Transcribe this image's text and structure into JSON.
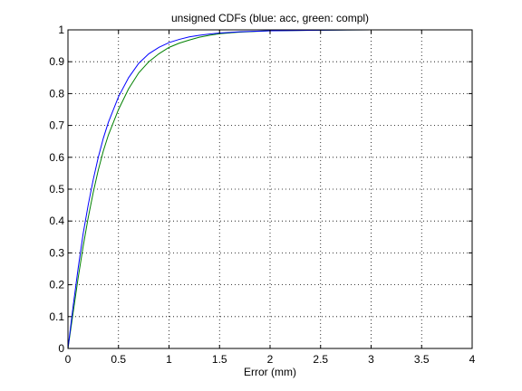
{
  "chart_data": {
    "type": "line",
    "title": "unsigned CDFs (blue: acc, green: compl)",
    "xlabel": "Error (mm)",
    "ylabel": "",
    "xlim": [
      0,
      4
    ],
    "ylim": [
      0,
      1
    ],
    "xticks": [
      0,
      0.5,
      1,
      1.5,
      2,
      2.5,
      3,
      3.5,
      4
    ],
    "xtick_labels": [
      "0",
      "0.5",
      "1",
      "1.5",
      "2",
      "2.5",
      "3",
      "3.5",
      "4"
    ],
    "yticks": [
      0,
      0.1,
      0.2,
      0.3,
      0.4,
      0.5,
      0.6,
      0.7,
      0.8,
      0.9,
      1
    ],
    "ytick_labels": [
      "0",
      "0.1",
      "0.2",
      "0.3",
      "0.4",
      "0.5",
      "0.6",
      "0.7",
      "0.8",
      "0.9",
      "1"
    ],
    "grid": true,
    "series": [
      {
        "color": "#0000ff",
        "x": [
          0,
          0.05,
          0.1,
          0.15,
          0.2,
          0.25,
          0.3,
          0.35,
          0.4,
          0.45,
          0.5,
          0.6,
          0.7,
          0.8,
          0.9,
          1.0,
          1.1,
          1.2,
          1.3,
          1.4,
          1.5,
          1.7,
          2.0,
          2.5,
          3.0,
          3.5,
          4.0
        ],
        "y": [
          0.0,
          0.13,
          0.25,
          0.36,
          0.45,
          0.53,
          0.6,
          0.66,
          0.71,
          0.75,
          0.79,
          0.85,
          0.895,
          0.925,
          0.945,
          0.96,
          0.97,
          0.978,
          0.983,
          0.987,
          0.99,
          0.994,
          0.997,
          0.999,
          1.0,
          1.0,
          1.0
        ]
      },
      {
        "color": "#008000",
        "x": [
          0,
          0.05,
          0.1,
          0.15,
          0.2,
          0.25,
          0.3,
          0.35,
          0.4,
          0.45,
          0.5,
          0.6,
          0.7,
          0.8,
          0.9,
          1.0,
          1.1,
          1.2,
          1.3,
          1.4,
          1.5,
          1.7,
          2.0,
          2.5,
          3.0,
          3.5,
          4.0
        ],
        "y": [
          0.0,
          0.11,
          0.22,
          0.32,
          0.41,
          0.49,
          0.56,
          0.62,
          0.67,
          0.71,
          0.75,
          0.815,
          0.865,
          0.9,
          0.925,
          0.945,
          0.958,
          0.968,
          0.977,
          0.983,
          0.988,
          0.993,
          0.997,
          0.999,
          1.0,
          1.0,
          1.0
        ]
      }
    ]
  }
}
